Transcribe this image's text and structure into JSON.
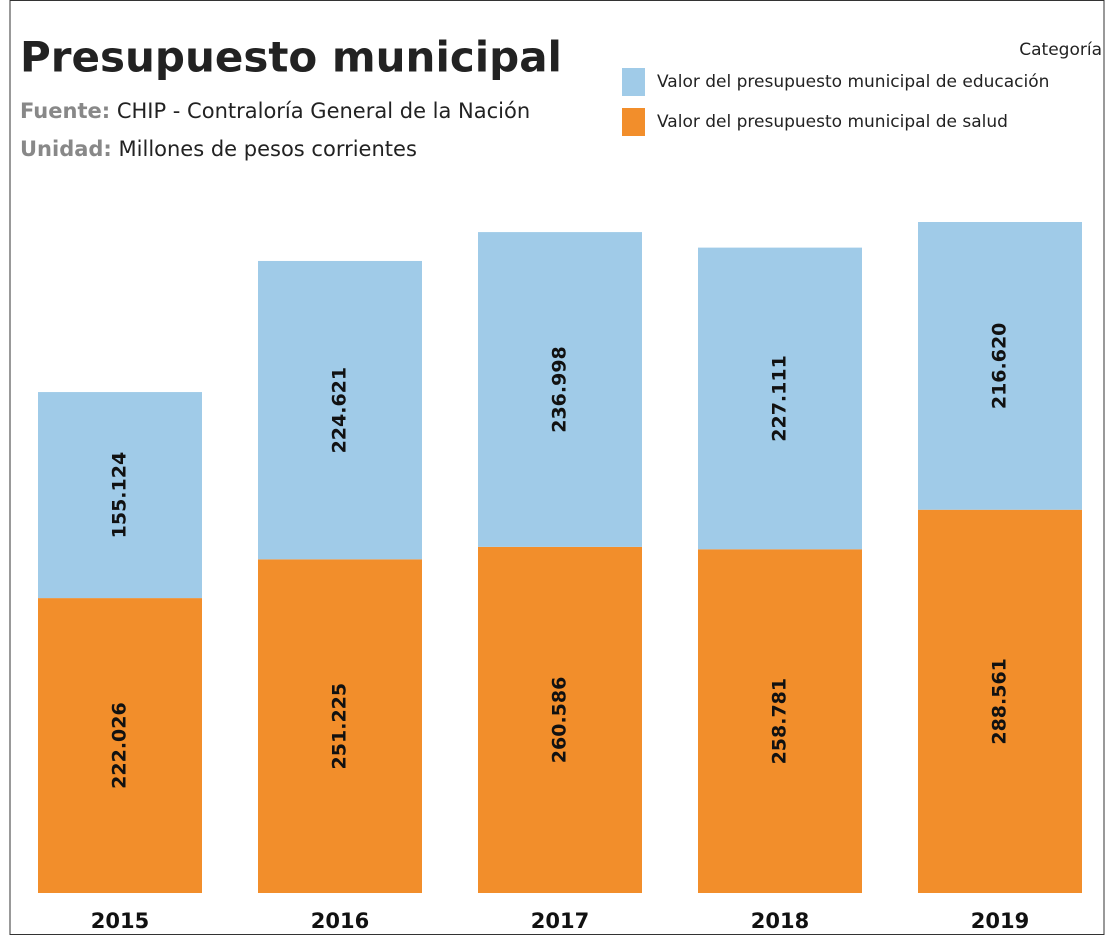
{
  "chart_data": {
    "type": "stacked_bar",
    "title": "Presupuesto municipal",
    "source_label": "Fuente:",
    "source": "CHIP - Contraloría General de la Nación",
    "unit_label": "Unidad:",
    "unit": "Millones de pesos corrientes",
    "legend_title": "Categoría",
    "legend_position": "top-right",
    "categories": [
      "2015",
      "2016",
      "2017",
      "2018",
      "2019"
    ],
    "series": [
      {
        "name": "Valor del presupuesto municipal de salud",
        "color": "#f28e2b",
        "values": [
          222026,
          251225,
          260586,
          258781,
          288561
        ],
        "value_labels": [
          "222.026",
          "251.225",
          "260.586",
          "258.781",
          "288.561"
        ]
      },
      {
        "name": "Valor del presupuesto municipal de educación",
        "color": "#a0cbe8",
        "values": [
          155124,
          224621,
          236998,
          227111,
          216620
        ],
        "value_labels": [
          "155.124",
          "224.621",
          "236.998",
          "227.111",
          "216.620"
        ]
      }
    ]
  }
}
